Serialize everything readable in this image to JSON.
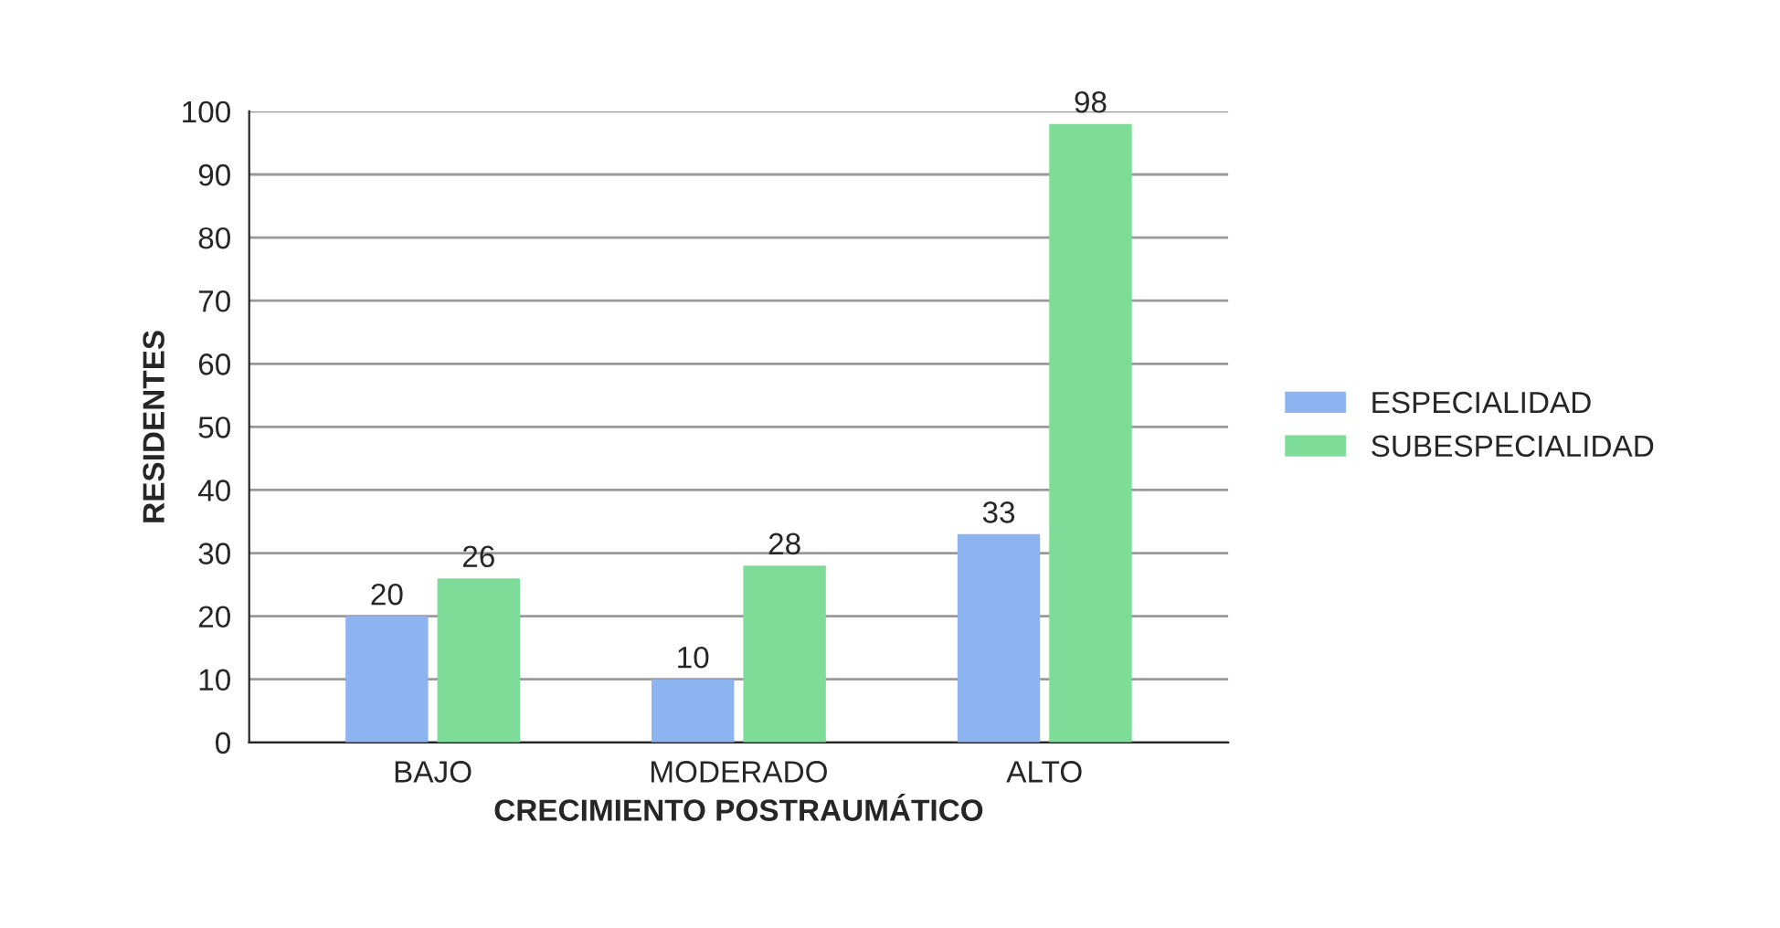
{
  "chart_data": {
    "type": "bar",
    "xlabel": "CRECIMIENTO POSTRAUMÁTICO",
    "ylabel": "RESIDENTES",
    "categories": [
      "BAJO",
      "MODERADO",
      "ALTO"
    ],
    "series": [
      {
        "name": "ESPECIALIDAD",
        "color": "#8db3f0",
        "values": [
          20,
          10,
          33
        ]
      },
      {
        "name": "SUBESPECIALIDAD",
        "color": "#7ddc98",
        "values": [
          26,
          28,
          98
        ]
      }
    ],
    "ylim": [
      0,
      100
    ],
    "yticks": [
      0,
      10,
      20,
      30,
      40,
      50,
      60,
      70,
      80,
      90,
      100
    ],
    "grid": "y",
    "legend": "right",
    "data_labels": true
  }
}
